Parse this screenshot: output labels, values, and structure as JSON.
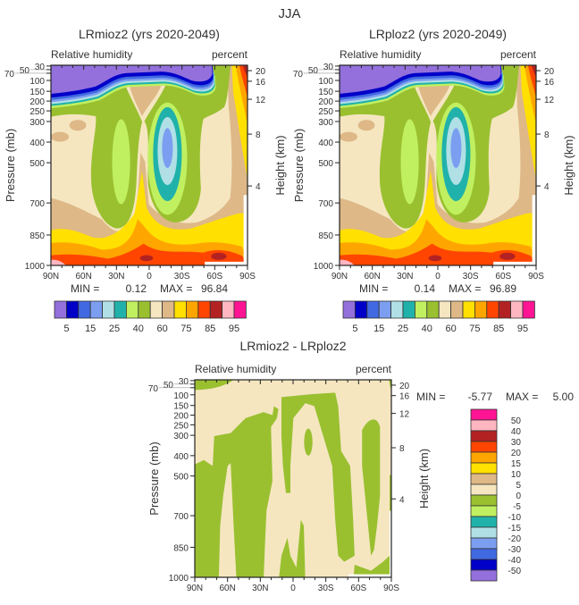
{
  "figure_title": "JJA",
  "palette_rh": [
    "#9370db",
    "#0000c8",
    "#4169e1",
    "#7b9ef0",
    "#b0e0e6",
    "#20b2aa",
    "#c0f060",
    "#9ac030",
    "#f5e6c0",
    "#deb887",
    "#ffe000",
    "#ffa500",
    "#ff4500",
    "#b22222",
    "#ffb6c1",
    "#ff1493"
  ],
  "palette_diff": [
    "#ff1493",
    "#ffb6c1",
    "#b22222",
    "#ff4500",
    "#ffa500",
    "#ffe000",
    "#deb887",
    "#f5e6c0",
    "#9ac030",
    "#c0f060",
    "#20b2aa",
    "#b0e0e6",
    "#7b9ef0",
    "#4169e1",
    "#0000c8",
    "#9370db"
  ],
  "chart_data": [
    {
      "type": "heatmap",
      "title": "LRmioz2 (yrs 2020-2049)",
      "variable": "Relative humidity",
      "units": "percent",
      "ylabel": "Pressure (mb)",
      "y2label": "Height (km)",
      "xticks": [
        "90N",
        "60N",
        "30N",
        "0",
        "30S",
        "60S",
        "90S"
      ],
      "yticks": [
        "30",
        "50",
        "70",
        "100",
        "150",
        "200",
        "250",
        "300",
        "400",
        "500",
        "700",
        "850",
        "1000"
      ],
      "y2ticks": [
        "20",
        "16",
        "12",
        "8",
        "4"
      ],
      "min_label": "MIN =",
      "min": "0.12",
      "max_label": "MAX =",
      "max": "96.84",
      "colorbar_labels": [
        "5",
        "15",
        "25",
        "40",
        "60",
        "75",
        "85",
        "95"
      ]
    },
    {
      "type": "heatmap",
      "title": "LRploz2 (yrs 2020-2049)",
      "variable": "Relative humidity",
      "units": "percent",
      "ylabel": "Pressure (mb)",
      "y2label": "Height (km)",
      "xticks": [
        "90N",
        "60N",
        "30N",
        "0",
        "30S",
        "60S",
        "90S"
      ],
      "yticks": [
        "30",
        "50",
        "70",
        "100",
        "150",
        "200",
        "250",
        "300",
        "400",
        "500",
        "700",
        "850",
        "1000"
      ],
      "y2ticks": [
        "20",
        "16",
        "12",
        "8",
        "4"
      ],
      "min_label": "MIN =",
      "min": "0.14",
      "max_label": "MAX =",
      "max": "96.89",
      "colorbar_labels": [
        "5",
        "15",
        "25",
        "40",
        "60",
        "75",
        "85",
        "95"
      ]
    },
    {
      "type": "heatmap",
      "title": "LRmioz2 - LRploz2",
      "variable": "Relative humidity",
      "units": "percent",
      "ylabel": "Pressure (mb)",
      "y2label": "Height (km)",
      "xticks": [
        "90N",
        "60N",
        "30N",
        "0",
        "30S",
        "60S",
        "90S"
      ],
      "yticks": [
        "30",
        "50",
        "70",
        "100",
        "150",
        "200",
        "250",
        "300",
        "400",
        "500",
        "700",
        "850",
        "1000"
      ],
      "y2ticks": [
        "20",
        "16",
        "12",
        "8",
        "4"
      ],
      "min_label": "MIN =",
      "min": "-5.77",
      "max_label": "MAX =",
      "max": "5.00",
      "colorbar_labels": [
        "50",
        "40",
        "30",
        "20",
        "15",
        "10",
        "5",
        "0",
        "-5",
        "-10",
        "-15",
        "-20",
        "-30",
        "-40",
        "-50"
      ]
    }
  ]
}
